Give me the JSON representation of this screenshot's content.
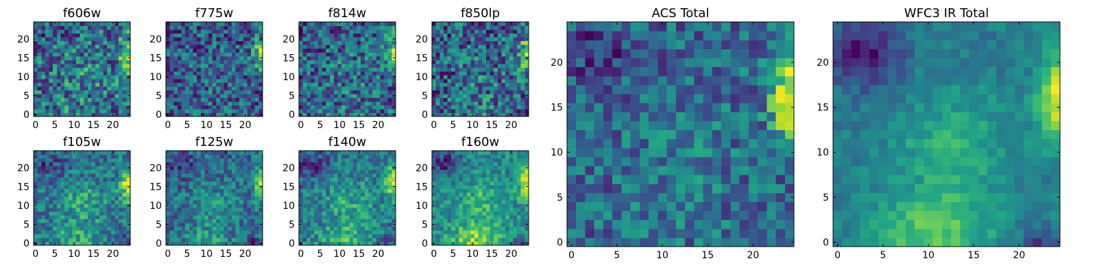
{
  "chart_data": [
    {
      "type": "heatmap",
      "title": "f606w",
      "xticks": [
        "0",
        "5",
        "10",
        "15",
        "20"
      ],
      "yticks": [
        "0",
        "5",
        "10",
        "15",
        "20"
      ],
      "grid_size": 25,
      "xlim": [
        0,
        25
      ],
      "ylim": [
        0,
        25
      ],
      "colormap": "viridis",
      "seed": 11,
      "noise": 0.55,
      "structure": {
        "right_edge": 0.9,
        "center_blob": 0.25,
        "bottom_center": 0.1,
        "upper_left_dark": 0.1,
        "bottom_right_dark": 0.0
      }
    },
    {
      "type": "heatmap",
      "title": "f775w",
      "xticks": [
        "0",
        "5",
        "10",
        "15",
        "20"
      ],
      "yticks": [
        "0",
        "5",
        "10",
        "15",
        "20"
      ],
      "grid_size": 25,
      "xlim": [
        0,
        25
      ],
      "ylim": [
        0,
        25
      ],
      "colormap": "viridis",
      "seed": 23,
      "noise": 0.6,
      "structure": {
        "right_edge": 0.85,
        "center_blob": 0.15,
        "bottom_center": 0.1,
        "upper_left_dark": 0.1,
        "bottom_right_dark": 0.0
      }
    },
    {
      "type": "heatmap",
      "title": "f814w",
      "xticks": [
        "0",
        "5",
        "10",
        "15",
        "20"
      ],
      "yticks": [
        "0",
        "5",
        "10",
        "15",
        "20"
      ],
      "grid_size": 25,
      "xlim": [
        0,
        25
      ],
      "ylim": [
        0,
        25
      ],
      "colormap": "viridis",
      "seed": 37,
      "noise": 0.6,
      "structure": {
        "right_edge": 0.85,
        "center_blob": 0.15,
        "bottom_center": 0.1,
        "upper_left_dark": 0.15,
        "bottom_right_dark": 0.0
      }
    },
    {
      "type": "heatmap",
      "title": "f850lp",
      "xticks": [
        "0",
        "5",
        "10",
        "15",
        "20"
      ],
      "yticks": [
        "0",
        "5",
        "10",
        "15",
        "20"
      ],
      "grid_size": 25,
      "xlim": [
        0,
        25
      ],
      "ylim": [
        0,
        25
      ],
      "colormap": "viridis",
      "seed": 41,
      "noise": 0.65,
      "structure": {
        "right_edge": 0.8,
        "center_blob": 0.2,
        "bottom_center": 0.2,
        "upper_left_dark": 0.1,
        "bottom_right_dark": 0.0
      }
    },
    {
      "type": "heatmap",
      "title": "f105w",
      "xticks": [
        "0",
        "5",
        "10",
        "15",
        "20"
      ],
      "yticks": [
        "0",
        "5",
        "10",
        "15",
        "20"
      ],
      "grid_size": 25,
      "xlim": [
        0,
        25
      ],
      "ylim": [
        0,
        25
      ],
      "colormap": "viridis",
      "seed": 53,
      "noise": 0.35,
      "structure": {
        "right_edge": 0.8,
        "center_blob": 0.45,
        "bottom_center": 0.35,
        "upper_left_dark": 0.35,
        "bottom_right_dark": 0.6
      }
    },
    {
      "type": "heatmap",
      "title": "f125w",
      "xticks": [
        "0",
        "5",
        "10",
        "15",
        "20"
      ],
      "yticks": [
        "0",
        "5",
        "10",
        "15",
        "20"
      ],
      "grid_size": 25,
      "xlim": [
        0,
        25
      ],
      "ylim": [
        0,
        25
      ],
      "colormap": "viridis",
      "seed": 67,
      "noise": 0.4,
      "structure": {
        "right_edge": 0.8,
        "center_blob": 0.4,
        "bottom_center": 0.45,
        "upper_left_dark": 0.3,
        "bottom_right_dark": 0.4
      }
    },
    {
      "type": "heatmap",
      "title": "f140w",
      "xticks": [
        "0",
        "5",
        "10",
        "15",
        "20"
      ],
      "yticks": [
        "0",
        "5",
        "10",
        "15",
        "20"
      ],
      "grid_size": 25,
      "xlim": [
        0,
        25
      ],
      "ylim": [
        0,
        25
      ],
      "colormap": "viridis",
      "seed": 79,
      "noise": 0.35,
      "structure": {
        "right_edge": 0.8,
        "center_blob": 0.5,
        "bottom_center": 0.55,
        "upper_left_dark": 0.5,
        "bottom_right_dark": 0.4
      }
    },
    {
      "type": "heatmap",
      "title": "f160w",
      "xticks": [
        "0",
        "5",
        "10",
        "15",
        "20"
      ],
      "yticks": [
        "0",
        "5",
        "10",
        "15",
        "20"
      ],
      "grid_size": 25,
      "xlim": [
        0,
        25
      ],
      "ylim": [
        0,
        25
      ],
      "colormap": "viridis",
      "seed": 83,
      "noise": 0.3,
      "structure": {
        "right_edge": 0.75,
        "center_blob": 0.45,
        "bottom_center": 0.7,
        "upper_left_dark": 0.6,
        "bottom_right_dark": 0.6
      }
    },
    {
      "type": "heatmap",
      "title": "ACS Total",
      "xticks": [
        "0",
        "5",
        "10",
        "15",
        "20"
      ],
      "yticks": [
        "0",
        "5",
        "10",
        "15",
        "20"
      ],
      "grid_size": 25,
      "xlim": [
        0,
        25
      ],
      "ylim": [
        0,
        25
      ],
      "colormap": "viridis",
      "seed": 97,
      "noise": 0.35,
      "structure": {
        "right_edge": 1.0,
        "center_blob": 0.2,
        "bottom_center": 0.1,
        "upper_left_dark": 0.3,
        "bottom_right_dark": 0.0
      }
    },
    {
      "type": "heatmap",
      "title": "WFC3 IR Total",
      "xticks": [
        "0",
        "5",
        "10",
        "15",
        "20"
      ],
      "yticks": [
        "0",
        "5",
        "10",
        "15",
        "20"
      ],
      "grid_size": 25,
      "xlim": [
        0,
        25
      ],
      "ylim": [
        0,
        25
      ],
      "colormap": "viridis",
      "seed": 101,
      "noise": 0.18,
      "structure": {
        "right_edge": 0.9,
        "center_blob": 0.55,
        "bottom_center": 0.75,
        "upper_left_dark": 0.75,
        "bottom_right_dark": 0.5
      }
    }
  ]
}
